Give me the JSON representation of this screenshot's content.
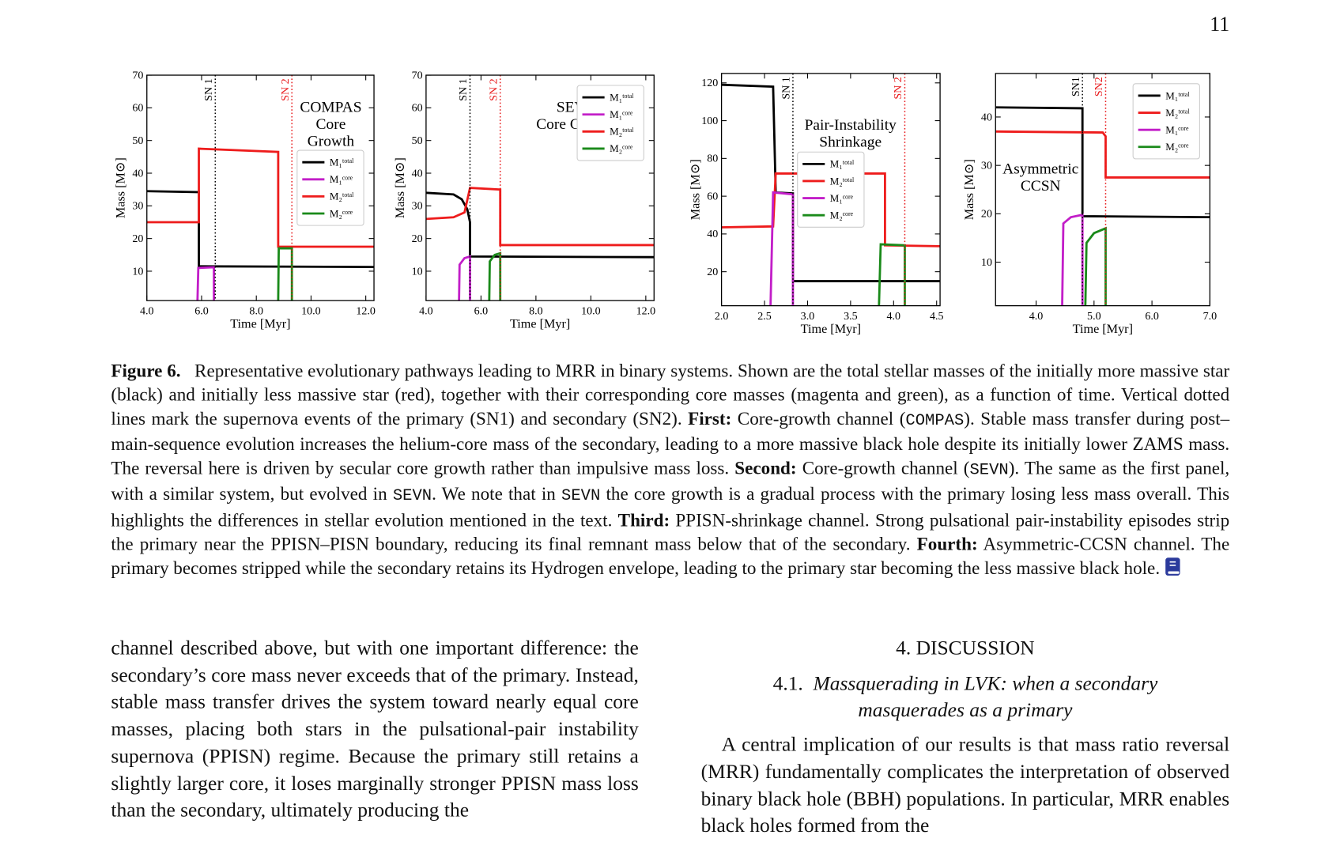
{
  "page_number": "11",
  "chart_data": [
    {
      "type": "line",
      "xlabel": "Time [Myr]",
      "ylabel": "Mass [M⊙]",
      "annotation": [
        "COMPAS",
        "Core",
        "Growth"
      ],
      "xlim": [
        4.0,
        12.3
      ],
      "ylim": [
        1,
        70
      ],
      "xticks": [
        {
          "value": 4,
          "label": "4.0"
        },
        {
          "value": 6,
          "label": "6.0"
        },
        {
          "value": 8,
          "label": "8.0"
        },
        {
          "value": 10,
          "label": "10.0"
        },
        {
          "value": 12,
          "label": "12.0"
        }
      ],
      "yticks": [
        10,
        20,
        30,
        40,
        50,
        60,
        70
      ],
      "legend": "center right",
      "vlines": [
        {
          "x": 6.5,
          "label": "SN 1",
          "color": "#000000"
        },
        {
          "x": 9.3,
          "label": "SN 2",
          "color": "#e8191b"
        }
      ],
      "series": [
        {
          "name": "M₁ᵗᵒᵗᵃˡ",
          "color": "#000000",
          "x": [
            4.0,
            5.9,
            5.9,
            12.3
          ],
          "values": [
            34.5,
            34.2,
            11.5,
            11.3
          ]
        },
        {
          "name": "M₁ᶜᵒʳᵉ",
          "color": "#c21ec8",
          "x": [
            5.85,
            5.88,
            6.45,
            6.45
          ],
          "values": [
            1,
            11,
            11.2,
            1
          ]
        },
        {
          "name": "M₂ᵗᵒᵗᵃˡ",
          "color": "#ee1c1c",
          "x": [
            4.0,
            5.9,
            5.9,
            8.8,
            8.8,
            12.3
          ],
          "values": [
            25,
            25,
            47.5,
            46.5,
            17.5,
            17.5
          ]
        },
        {
          "name": "M₂ᶜᵒʳᵉ",
          "color": "#1a8a1a",
          "x": [
            8.8,
            8.82,
            9.3,
            9.3
          ],
          "values": [
            1,
            17,
            17,
            1
          ]
        }
      ]
    },
    {
      "type": "line",
      "xlabel": "Time [Myr]",
      "ylabel": "Mass [M⊙]",
      "annotation": [
        "SEVN",
        "Core Growth"
      ],
      "xlim": [
        4.0,
        12.3
      ],
      "ylim": [
        1,
        70
      ],
      "xticks": [
        {
          "value": 4,
          "label": "4.0"
        },
        {
          "value": 6,
          "label": "6.0"
        },
        {
          "value": 8,
          "label": "8.0"
        },
        {
          "value": 10,
          "label": "10.0"
        },
        {
          "value": 12,
          "label": "12.0"
        }
      ],
      "yticks": [
        10,
        20,
        30,
        40,
        50,
        60,
        70
      ],
      "legend": "upper right",
      "vlines": [
        {
          "x": 5.6,
          "label": "SN 1",
          "color": "#000000"
        },
        {
          "x": 6.7,
          "label": "SN 2",
          "color": "#e8191b"
        }
      ],
      "series": [
        {
          "name": "M₁ᵗᵒᵗᵃˡ",
          "color": "#000000",
          "x": [
            4.0,
            5.0,
            5.3,
            5.5,
            5.6,
            5.6,
            12.3
          ],
          "values": [
            34,
            33.5,
            32,
            29,
            25,
            14.5,
            14.3
          ]
        },
        {
          "name": "M₁ᶜᵒʳᵉ",
          "color": "#c21ec8",
          "x": [
            5.2,
            5.22,
            5.4,
            5.6,
            5.6
          ],
          "values": [
            1,
            12,
            14,
            14.5,
            1
          ]
        },
        {
          "name": "M₂ᵗᵒᵗᵃˡ",
          "color": "#ee1c1c",
          "x": [
            4.0,
            5.0,
            5.4,
            5.6,
            6.7,
            6.7,
            12.3
          ],
          "values": [
            26,
            26.5,
            28,
            35.5,
            35,
            18,
            18
          ]
        },
        {
          "name": "M₂ᶜᵒʳᵉ",
          "color": "#1a8a1a",
          "x": [
            6.3,
            6.32,
            6.5,
            6.7,
            6.7
          ],
          "values": [
            1,
            13,
            15,
            15.5,
            1
          ]
        }
      ]
    },
    {
      "type": "line",
      "xlabel": "Time [Myr]",
      "ylabel": "Mass [M⊙]",
      "annotation": [
        "Pair-Instability",
        "Shrinkage"
      ],
      "xlim": [
        2.0,
        4.54
      ],
      "ylim": [
        2,
        125
      ],
      "xticks": [
        {
          "value": 2,
          "label": "2.0"
        },
        2.5,
        {
          "value": 3,
          "label": "3.0"
        },
        3.5,
        {
          "value": 4,
          "label": "4.0"
        },
        4.5
      ],
      "yticks": [
        20,
        40,
        60,
        80,
        100,
        120
      ],
      "legend": "center",
      "vlines": [
        {
          "x": 2.83,
          "label": "SN 1",
          "color": "#000000"
        },
        {
          "x": 4.13,
          "label": "SN 2",
          "color": "#e8191b"
        }
      ],
      "series": [
        {
          "name": "M₁ᵗᵒᵗᵃˡ",
          "color": "#000000",
          "x": [
            2.0,
            2.6,
            2.63,
            2.83,
            2.83,
            4.54
          ],
          "values": [
            119,
            118,
            62,
            61.5,
            15,
            15
          ]
        },
        {
          "name": "M₂ᵗᵒᵗᵃˡ",
          "color": "#ee1c1c",
          "x": [
            2.0,
            2.6,
            2.63,
            3.9,
            3.9,
            4.54
          ],
          "values": [
            43.5,
            44,
            72,
            72,
            34,
            33.5
          ]
        },
        {
          "name": "M₁ᶜᵒʳᵉ",
          "color": "#c21ec8",
          "x": [
            2.57,
            2.6,
            2.83,
            2.83
          ],
          "values": [
            2,
            62,
            61,
            2
          ]
        },
        {
          "name": "M₂ᶜᵒʳᵉ",
          "color": "#1a8a1a",
          "x": [
            3.83,
            3.85,
            4.13,
            4.13
          ],
          "values": [
            2,
            34.5,
            34,
            2
          ]
        }
      ]
    },
    {
      "type": "line",
      "xlabel": "Time [Myr]",
      "ylabel": "Mass [M⊙]",
      "annotation": [
        "Asymmetric",
        "CCSN"
      ],
      "xlim": [
        3.3,
        7.0
      ],
      "ylim": [
        1,
        49
      ],
      "xticks": [
        {
          "value": 4,
          "label": "4.0"
        },
        {
          "value": 5,
          "label": "5.0"
        },
        {
          "value": 6,
          "label": "6.0"
        },
        {
          "value": 7,
          "label": "7.0"
        }
      ],
      "yticks": [
        10,
        20,
        30,
        40
      ],
      "legend": "upper right",
      "vlines": [
        {
          "x": 4.8,
          "label": "SN1",
          "color": "#000000"
        },
        {
          "x": 5.2,
          "label": "SN2",
          "color": "#e8191b"
        }
      ],
      "series": [
        {
          "name": "M₁ᵗᵒᵗᵃˡ",
          "color": "#000000",
          "x": [
            3.3,
            4.8,
            4.8,
            7.0
          ],
          "values": [
            42,
            41.8,
            19.5,
            19.3
          ]
        },
        {
          "name": "M₂ᵗᵒᵗᵃˡ",
          "color": "#ee1c1c",
          "x": [
            3.3,
            5.15,
            5.2,
            5.2,
            7.0
          ],
          "values": [
            37,
            36.8,
            36,
            27.5,
            27.5
          ]
        },
        {
          "name": "M₁ᶜᵒʳᵉ",
          "color": "#c21ec8",
          "x": [
            4.45,
            4.47,
            4.6,
            4.8,
            4.8
          ],
          "values": [
            1,
            18,
            19.3,
            19.8,
            1
          ]
        },
        {
          "name": "M₂ᶜᵒʳᵉ",
          "color": "#1a8a1a",
          "x": [
            4.85,
            4.87,
            5.0,
            5.2,
            5.2
          ],
          "values": [
            1,
            14,
            16,
            17,
            1
          ]
        }
      ]
    }
  ],
  "figure": {
    "label": "Figure 6.",
    "caption": [
      "Representative evolutionary pathways leading to MRR in binary systems. Shown are the total stellar masses of the initially more massive star (black) and initially less massive star (red), together with their corresponding core masses (magenta and green), as a function of time. Vertical dotted lines mark the supernova events of the primary (SN1) and secondary (SN2).",
      "First:",
      "Core-growth channel (",
      "COMPAS",
      "). Stable mass transfer during post–main-sequence evolution increases the helium-core mass of the secondary, leading to a more massive black hole despite its initially lower ZAMS mass. The reversal here is driven by secular core growth rather than impulsive mass loss.",
      "Second:",
      "Core-growth channel (",
      "SEVN",
      "). The same as the first panel, with a similar system, but evolved in",
      "SEVN",
      ". We note that in",
      "SEVN",
      "the core growth is a gradual process with the primary losing less mass overall. This highlights the differences in stellar evolution mentioned in the text.",
      "Third:",
      "PPISN-shrinkage channel. Strong pulsational pair-instability episodes strip the primary near the PPISN–PISN boundary, reducing its final remnant mass below that of the secondary.",
      "Fourth:",
      "Asymmetric-CCSN channel. The primary becomes stripped while the secondary retains its Hydrogen envelope, leading to the primary star becoming the less massive black hole."
    ]
  },
  "left_column": {
    "text": "channel described above, but with one important difference: the secondary’s core mass never exceeds that of the primary. Instead, stable mass transfer drives the system toward nearly equal core masses, placing both stars in the pulsational-pair instability supernova (PPISN) regime. Because the primary still retains a slightly larger core, it loses marginally stronger PPISN mass loss than the secondary, ultimately producing the"
  },
  "right_column": {
    "section": "4. DISCUSSION",
    "subsection_number": "4.1.",
    "subsection_title": "Massquerading in LVK: when a secondary masquerades as a primary",
    "text": "A central implication of our results is that mass ratio reversal (MRR) fundamentally complicates the interpretation of observed binary black hole (BBH) populations. In particular, MRR enables black holes formed from the"
  }
}
